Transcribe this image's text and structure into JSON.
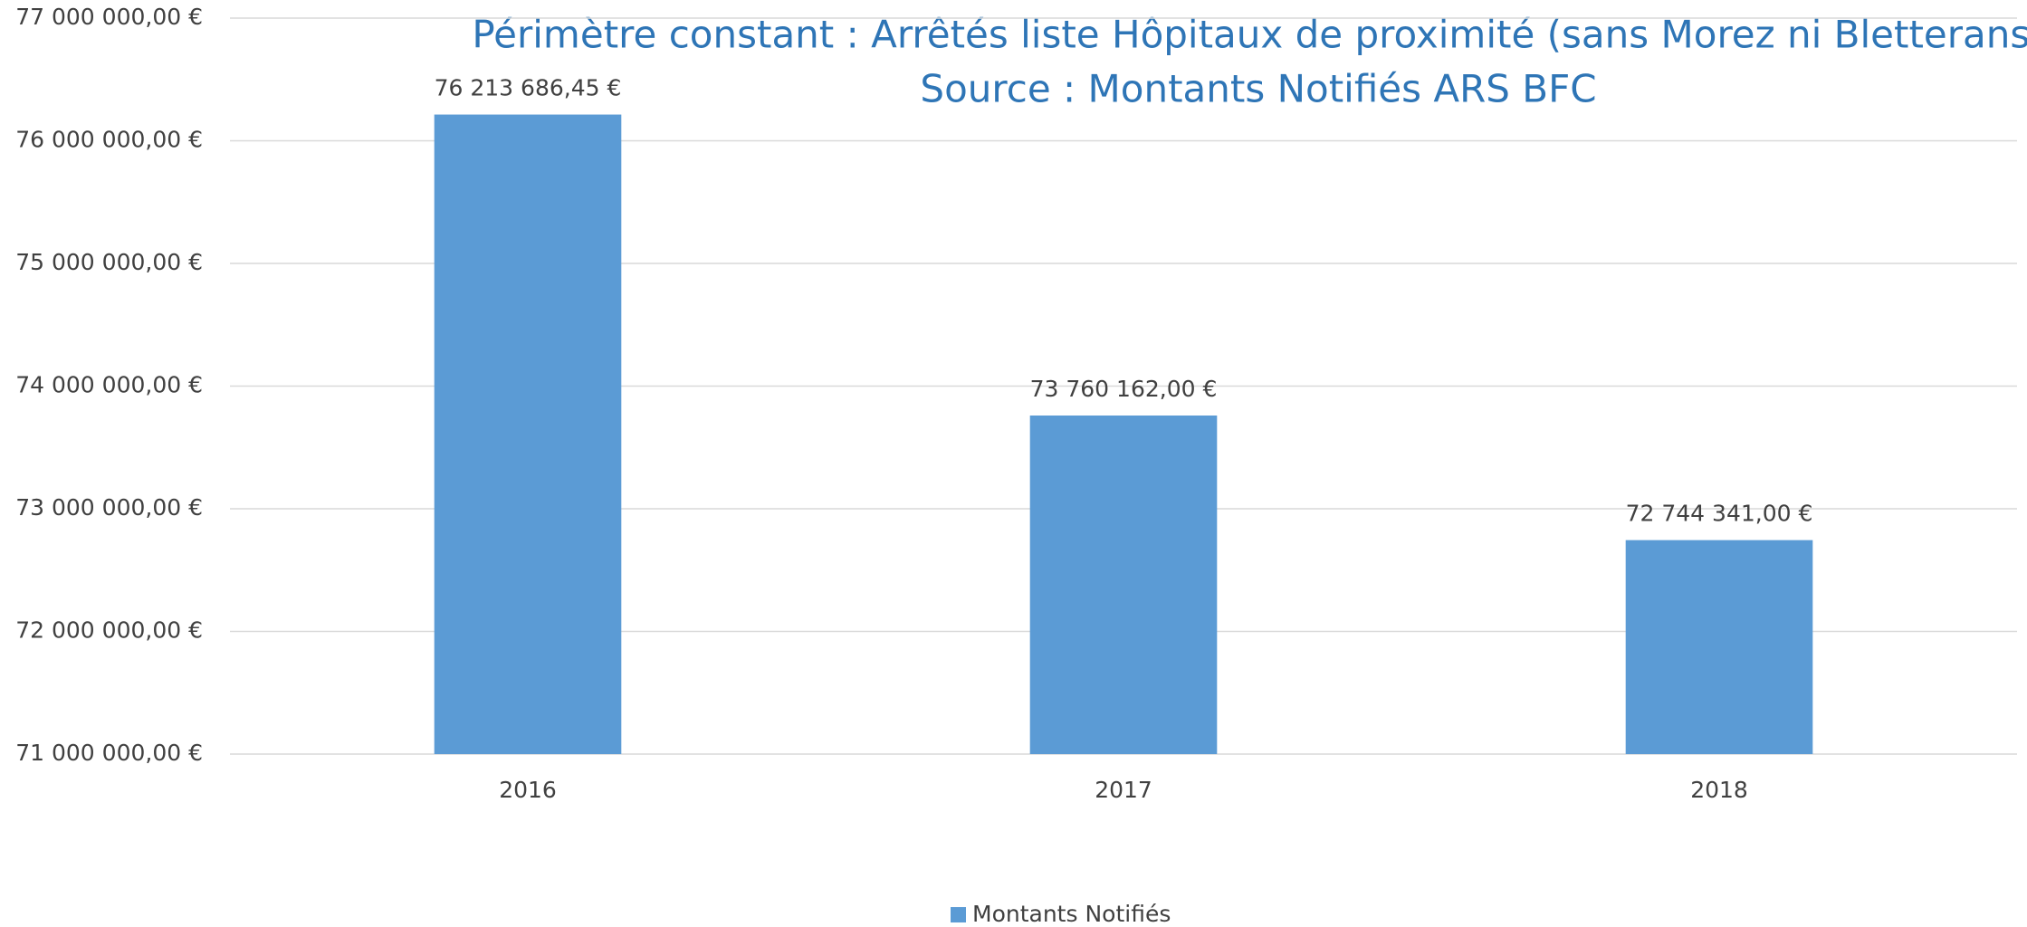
{
  "chart_data": {
    "type": "bar",
    "subtitle": [
      "Périmètre constant : Arrêtés liste Hôpitaux de proximité (sans Morez ni Bletterans)",
      "Source : Montants Notifiés ARS BFC"
    ],
    "categories": [
      "2016",
      "2017",
      "2018"
    ],
    "series": [
      {
        "name": "Montants Notifiés",
        "color": "#5b9bd5",
        "values": [
          76213686.45,
          73760162,
          72744341
        ],
        "value_labels": [
          "76 213 686,45 €",
          "73 760 162,00 €",
          "72 744 341,00 €"
        ]
      }
    ],
    "ylim": [
      71000000,
      77000000
    ],
    "yticks": [
      {
        "value": 71000000,
        "label": "71 000 000,00 €"
      },
      {
        "value": 72000000,
        "label": "72 000 000,00 €"
      },
      {
        "value": 73000000,
        "label": "73 000 000,00 €"
      },
      {
        "value": 74000000,
        "label": "74 000 000,00 €"
      },
      {
        "value": 75000000,
        "label": "75 000 000,00 €"
      },
      {
        "value": 76000000,
        "label": "76 000 000,00 €"
      },
      {
        "value": 77000000,
        "label": "77 000 000,00 €"
      }
    ],
    "grid": true,
    "legend": "bottom",
    "title_color": "#2e75b6"
  }
}
